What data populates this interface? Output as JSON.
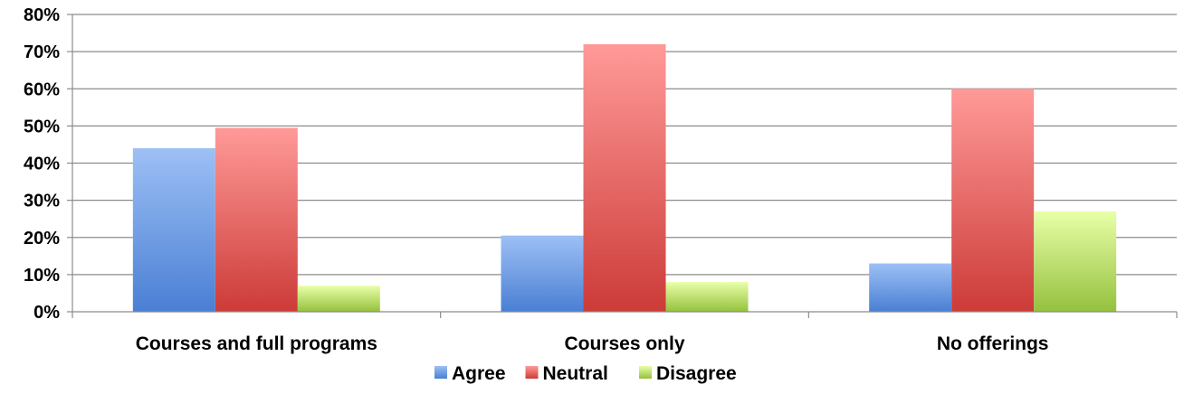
{
  "chart_data": {
    "type": "bar",
    "title": "",
    "xlabel": "",
    "ylabel": "",
    "categories": [
      "Courses and full programs",
      "Courses only",
      "No offerings"
    ],
    "series": [
      {
        "name": "Agree",
        "values": [
          44,
          20.5,
          13
        ],
        "color": "#4a7fd4",
        "color_light": "#9dc0f5"
      },
      {
        "name": "Neutral",
        "values": [
          49.5,
          72,
          60
        ],
        "color": "#cc3b38",
        "color_light": "#ff9a98"
      },
      {
        "name": "Disagree",
        "values": [
          7,
          8,
          27
        ],
        "color": "#95c13d",
        "color_light": "#e8ffa8"
      }
    ],
    "ylim": [
      0,
      80
    ],
    "yticks": [
      0,
      10,
      20,
      30,
      40,
      50,
      60,
      70,
      80
    ],
    "ytick_labels": [
      "0%",
      "10%",
      "20%",
      "30%",
      "40%",
      "50%",
      "60%",
      "70%",
      "80%"
    ],
    "grid": true,
    "legend": "bottom"
  }
}
